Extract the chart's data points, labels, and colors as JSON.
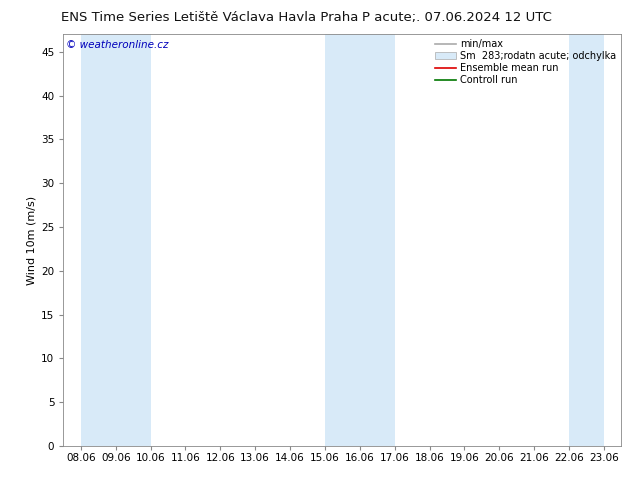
{
  "title_left": "ENS Time Series Letiště Václava Havla Praha",
  "title_right": "P acute;. 07.06.2024 12 UTC",
  "ylabel": "Wind 10m (m/s)",
  "watermark": "© weatheronline.cz",
  "watermark_color": "#0000bb",
  "ylim": [
    0,
    47
  ],
  "yticks": [
    0,
    5,
    10,
    15,
    20,
    25,
    30,
    35,
    40,
    45
  ],
  "xtick_labels": [
    "08.06",
    "09.06",
    "10.06",
    "11.06",
    "12.06",
    "13.06",
    "14.06",
    "15.06",
    "16.06",
    "17.06",
    "18.06",
    "19.06",
    "20.06",
    "21.06",
    "22.06",
    "23.06"
  ],
  "shade_color": "#d8eaf8",
  "bg_color": "#ffffff",
  "shade_indices": [
    0,
    1,
    3,
    7,
    8,
    14
  ],
  "legend_label_minmax": "min/max",
  "legend_label_spread": "Sm  283;rodatn acute; odchylka",
  "legend_label_ensemble": "Ensemble mean run",
  "legend_label_control": "Controll run",
  "legend_line_color": "#aaaaaa",
  "legend_fill_color": "#d8eaf8",
  "legend_ensemble_color": "#dd0000",
  "legend_control_color": "#007700",
  "title_fontsize": 9.5,
  "axis_fontsize": 8,
  "tick_fontsize": 7.5
}
